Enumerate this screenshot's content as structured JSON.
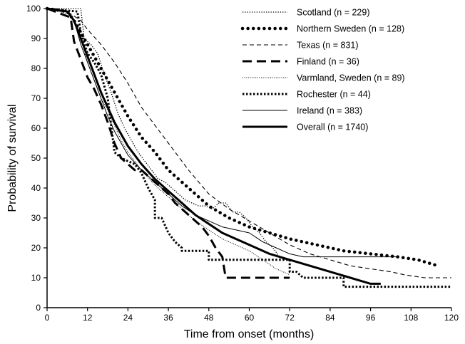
{
  "chart_data": {
    "type": "line",
    "title": "",
    "xlabel": "Time from onset (months)",
    "ylabel": "Probability of survival",
    "xlim": [
      0,
      120
    ],
    "ylim": [
      0,
      100
    ],
    "x_ticks": [
      0,
      12,
      24,
      36,
      48,
      60,
      72,
      84,
      96,
      108,
      120
    ],
    "y_ticks": [
      0,
      10,
      20,
      30,
      40,
      50,
      60,
      70,
      80,
      90,
      100
    ],
    "grid": false,
    "legend_position": "top-right",
    "series": [
      {
        "name": "Scotland (n = 229)",
        "style": "dotted-thin",
        "points": [
          [
            0,
            100
          ],
          [
            10,
            100
          ],
          [
            11,
            90
          ],
          [
            13,
            88
          ],
          [
            15,
            85
          ],
          [
            17,
            78
          ],
          [
            19,
            72
          ],
          [
            21,
            65
          ],
          [
            23,
            60
          ],
          [
            25,
            56
          ],
          [
            27,
            52
          ],
          [
            29,
            49
          ],
          [
            31,
            46
          ],
          [
            33,
            43
          ],
          [
            35,
            42
          ],
          [
            37,
            40
          ],
          [
            39,
            38
          ],
          [
            41,
            36
          ],
          [
            43,
            35
          ],
          [
            45,
            34
          ],
          [
            47,
            34
          ],
          [
            49,
            33
          ],
          [
            51,
            35
          ],
          [
            53,
            35
          ],
          [
            55,
            32
          ],
          [
            57,
            32
          ],
          [
            59,
            30
          ],
          [
            61,
            27
          ],
          [
            63,
            25
          ],
          [
            65,
            22
          ],
          [
            67,
            20
          ],
          [
            69,
            17
          ],
          [
            71,
            16
          ]
        ]
      },
      {
        "name": "Northern Sweden (n = 128)",
        "style": "dotted-heavy",
        "points": [
          [
            0,
            100
          ],
          [
            6,
            99
          ],
          [
            8,
            96
          ],
          [
            10,
            92
          ],
          [
            12,
            88
          ],
          [
            14,
            84
          ],
          [
            16,
            80
          ],
          [
            18,
            76
          ],
          [
            20,
            72
          ],
          [
            24,
            64
          ],
          [
            28,
            57
          ],
          [
            32,
            52
          ],
          [
            36,
            46
          ],
          [
            42,
            40
          ],
          [
            48,
            34
          ],
          [
            54,
            30
          ],
          [
            60,
            27
          ],
          [
            66,
            25
          ],
          [
            72,
            23
          ],
          [
            80,
            21
          ],
          [
            88,
            19
          ],
          [
            96,
            18
          ],
          [
            104,
            17
          ],
          [
            110,
            16
          ],
          [
            116,
            14
          ]
        ]
      },
      {
        "name": "Texas (n = 831)",
        "style": "dashed-thin",
        "points": [
          [
            0,
            100
          ],
          [
            6,
            99
          ],
          [
            10,
            96
          ],
          [
            12,
            93
          ],
          [
            16,
            88
          ],
          [
            20,
            82
          ],
          [
            24,
            75
          ],
          [
            28,
            67
          ],
          [
            32,
            61
          ],
          [
            36,
            55
          ],
          [
            42,
            46
          ],
          [
            48,
            38
          ],
          [
            54,
            33
          ],
          [
            60,
            29
          ],
          [
            66,
            25
          ],
          [
            72,
            21
          ],
          [
            78,
            18
          ],
          [
            84,
            16
          ],
          [
            90,
            14
          ],
          [
            96,
            13
          ],
          [
            102,
            12
          ],
          [
            106,
            11
          ],
          [
            112,
            10
          ],
          [
            120,
            10
          ]
        ]
      },
      {
        "name": "Finland  (n = 36)",
        "style": "dashed-heavy",
        "points": [
          [
            0,
            100
          ],
          [
            7,
            97
          ],
          [
            8,
            89
          ],
          [
            10,
            83
          ],
          [
            12,
            77
          ],
          [
            14,
            73
          ],
          [
            16,
            68
          ],
          [
            18,
            62
          ],
          [
            20,
            55
          ],
          [
            22,
            50
          ],
          [
            24,
            48
          ],
          [
            26,
            46
          ],
          [
            28,
            46
          ],
          [
            30,
            44
          ],
          [
            32,
            42
          ],
          [
            34,
            40
          ],
          [
            36,
            38
          ],
          [
            38,
            35
          ],
          [
            40,
            33
          ],
          [
            42,
            31
          ],
          [
            44,
            29
          ],
          [
            46,
            27
          ],
          [
            48,
            24
          ],
          [
            50,
            20
          ],
          [
            52,
            17
          ],
          [
            53,
            10
          ],
          [
            56,
            10
          ],
          [
            72,
            10
          ]
        ]
      },
      {
        "name": "Varmland, Sweden (n = 89)",
        "style": "dotted-fine",
        "points": [
          [
            0,
            100
          ],
          [
            7,
            98
          ],
          [
            10,
            90
          ],
          [
            12,
            82
          ],
          [
            14,
            76
          ],
          [
            16,
            70
          ],
          [
            18,
            66
          ],
          [
            20,
            61
          ],
          [
            22,
            56
          ],
          [
            24,
            52
          ],
          [
            28,
            46
          ],
          [
            32,
            41
          ],
          [
            36,
            37
          ],
          [
            40,
            33
          ],
          [
            44,
            29
          ],
          [
            48,
            26
          ],
          [
            52,
            23
          ],
          [
            56,
            21
          ],
          [
            60,
            19
          ],
          [
            64,
            16
          ],
          [
            68,
            13
          ],
          [
            72,
            11
          ]
        ]
      },
      {
        "name": "Rochester (n = 44)",
        "style": "dotted-medium",
        "points": [
          [
            0,
            100
          ],
          [
            9,
            99
          ],
          [
            10,
            92
          ],
          [
            12,
            85
          ],
          [
            14,
            82
          ],
          [
            16,
            78
          ],
          [
            18,
            70
          ],
          [
            20,
            52
          ],
          [
            22,
            50
          ],
          [
            24,
            49
          ],
          [
            26,
            48
          ],
          [
            28,
            45
          ],
          [
            30,
            40
          ],
          [
            32,
            36
          ],
          [
            32,
            30
          ],
          [
            34,
            30
          ],
          [
            36,
            25
          ],
          [
            38,
            22
          ],
          [
            40,
            20
          ],
          [
            40,
            19
          ],
          [
            48,
            19
          ],
          [
            48,
            16
          ],
          [
            72,
            16
          ],
          [
            72,
            12
          ],
          [
            74,
            12
          ],
          [
            76,
            10
          ],
          [
            88,
            10
          ],
          [
            88,
            7
          ],
          [
            120,
            7
          ]
        ]
      },
      {
        "name": "Ireland (n = 383)",
        "style": "solid-thin",
        "points": [
          [
            0,
            100
          ],
          [
            6,
            99
          ],
          [
            8,
            96
          ],
          [
            10,
            88
          ],
          [
            12,
            82
          ],
          [
            14,
            76
          ],
          [
            16,
            70
          ],
          [
            18,
            64
          ],
          [
            20,
            59
          ],
          [
            22,
            55
          ],
          [
            24,
            51
          ],
          [
            28,
            46
          ],
          [
            32,
            42
          ],
          [
            36,
            38
          ],
          [
            40,
            34
          ],
          [
            44,
            31
          ],
          [
            48,
            29
          ],
          [
            52,
            27
          ],
          [
            56,
            26
          ],
          [
            60,
            25
          ],
          [
            64,
            22
          ],
          [
            68,
            20
          ],
          [
            72,
            18
          ],
          [
            76,
            17
          ],
          [
            80,
            17
          ],
          [
            90,
            17
          ],
          [
            104,
            17
          ]
        ]
      },
      {
        "name": "Overall (n = 1740)",
        "style": "solid-heavy",
        "points": [
          [
            0,
            100
          ],
          [
            6,
            99
          ],
          [
            8,
            96
          ],
          [
            10,
            90
          ],
          [
            12,
            84
          ],
          [
            14,
            78
          ],
          [
            16,
            72
          ],
          [
            18,
            67
          ],
          [
            20,
            62
          ],
          [
            22,
            58
          ],
          [
            24,
            54
          ],
          [
            28,
            48
          ],
          [
            32,
            43
          ],
          [
            36,
            39
          ],
          [
            40,
            35
          ],
          [
            44,
            31
          ],
          [
            48,
            28
          ],
          [
            52,
            25
          ],
          [
            56,
            23
          ],
          [
            60,
            21
          ],
          [
            66,
            18
          ],
          [
            72,
            16
          ],
          [
            78,
            14
          ],
          [
            84,
            12
          ],
          [
            90,
            10
          ],
          [
            96,
            8
          ],
          [
            99,
            8
          ]
        ]
      }
    ]
  }
}
